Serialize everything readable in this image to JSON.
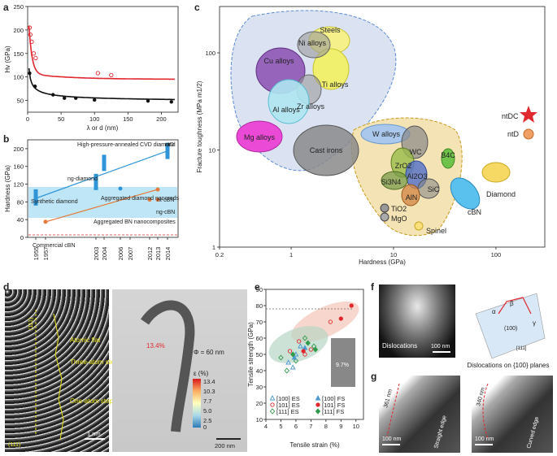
{
  "panel_labels": [
    "a",
    "b",
    "c",
    "d",
    "e",
    "f",
    "g"
  ],
  "chart_data": [
    {
      "id": "a",
      "type": "line",
      "xlabel": "λ or d (nm)",
      "ylabel": "Hv (GPa)",
      "xlim": [
        0,
        225
      ],
      "ylim": [
        25,
        250
      ],
      "xticks": [
        "0",
        "50",
        "100",
        "150",
        "200"
      ],
      "yticks": [
        "50",
        "100",
        "150",
        "200",
        "250"
      ],
      "series": [
        {
          "name": "nanotwinned (red)",
          "color": "#e0282e",
          "points": [
            [
              3,
              205
            ],
            [
              4,
              190
            ],
            [
              6,
              175
            ],
            [
              9,
              150
            ],
            [
              12,
              140
            ],
            [
              105,
              108
            ],
            [
              125,
              104
            ]
          ]
        },
        {
          "name": "nanograined (black)",
          "color": "#111111",
          "points": [
            [
              3,
              108
            ],
            [
              11,
              80
            ],
            [
              38,
              62
            ],
            [
              55,
              55
            ],
            [
              72,
              55
            ],
            [
              100,
              51
            ],
            [
              180,
              49
            ],
            [
              215,
              47
            ]
          ]
        }
      ]
    },
    {
      "id": "b",
      "type": "scatter",
      "xlabel": "",
      "ylabel": "Hardness (GPa)",
      "ylim": [
        0,
        220
      ],
      "yticks": [
        "0",
        "40",
        "80",
        "120",
        "160",
        "200"
      ],
      "xticks": [
        "1955",
        "1957",
        "2003",
        "2004",
        "2006",
        "2007",
        "2012",
        "2013",
        "2014"
      ],
      "labels": {
        "synthetic": "Synthetic diamond",
        "hp_annealed": "High-pressure-annealed CVD diamond",
        "ntd": "ntD",
        "ngd": "ng-diamond",
        "agg_diamond": "Aggregated diamond nanorods",
        "ntcbn": "nt-cBN",
        "ngcbn": "ng-cBN",
        "agg_bn": "Aggregated BN nanocomposites",
        "commercial": "Commercial cBN"
      },
      "points": [
        {
          "name": "Synthetic diamond",
          "year": 1955,
          "value": 90
        },
        {
          "name": "ng-diamond",
          "year": 2003,
          "value": 125
        },
        {
          "name": "High-pressure-annealed CVD diamond",
          "year": 2004,
          "value": 168
        },
        {
          "name": "Aggregated diamond nanorods",
          "year": 2006,
          "value": 110
        },
        {
          "name": "ntD",
          "year": 2014,
          "value": 195
        },
        {
          "name": "Commercial cBN",
          "year": 1957,
          "value": 35
        },
        {
          "name": "Aggregated BN nanocomposites",
          "year": 2012,
          "value": 85
        },
        {
          "name": "ng-cBN",
          "year": 2013,
          "value": 85
        },
        {
          "name": "nt-cBN",
          "year": 2013,
          "value": 108
        }
      ],
      "reference_line": 40
    },
    {
      "id": "c",
      "type": "scatter",
      "xlabel": "Hardness (GPa)",
      "ylabel": "Fracture toughness (MPa m1/2)",
      "xlim": [
        0.2,
        300
      ],
      "ylim": [
        1,
        300
      ],
      "xticks": [
        "0.2",
        "1",
        "10",
        "100"
      ],
      "yticks": [
        "1",
        "10",
        "100"
      ],
      "materials": [
        "Steels",
        "Ni alloys",
        "Cu alloys",
        "Ti alloys",
        "Zr alloys",
        "Al alloys",
        "Mg alloys",
        "Cast irons",
        "W alloys",
        "WC",
        "B4C",
        "ZrO2",
        "Al2O3",
        "Si3N4",
        "SiC",
        "AlN",
        "TiO2",
        "MgO",
        "Spinel",
        "Diamond",
        "cBN"
      ],
      "legend": [
        {
          "label": "ntDC",
          "hardness": 200,
          "toughness": 15
        },
        {
          "label": "ntD",
          "hardness": 200,
          "toughness": 10
        }
      ]
    },
    {
      "id": "e",
      "type": "scatter",
      "xlabel": "Tensile strain (%)",
      "ylabel": "Tensile strength (GPa)",
      "xlim": [
        4,
        10.5
      ],
      "ylim": [
        10,
        90
      ],
      "xticks": [
        "4",
        "5",
        "6",
        "7",
        "8",
        "9",
        "10"
      ],
      "yticks": [
        "10",
        "20",
        "30",
        "40",
        "50",
        "60",
        "70",
        "80",
        "90"
      ],
      "legend": [
        "[100] ES",
        "[101] ES",
        "[111] ES",
        "[100] FS",
        "[101] FS",
        "[111] FS"
      ],
      "inset_label": "9.7%",
      "series": [
        {
          "name": "[100] ES",
          "color": "#4a9ad0",
          "points": [
            [
              5.5,
              45
            ],
            [
              6.0,
              50
            ],
            [
              6.3,
              55
            ],
            [
              5.8,
              42
            ]
          ]
        },
        {
          "name": "[101] ES",
          "color": "#e0282e",
          "points": [
            [
              5.6,
              52
            ],
            [
              6.2,
              58
            ],
            [
              6.6,
              50
            ],
            [
              7.0,
              53
            ],
            [
              8.3,
              70
            ]
          ]
        },
        {
          "name": "[111] ES",
          "color": "#2f9a4a",
          "points": [
            [
              5.0,
              48
            ],
            [
              5.4,
              40
            ],
            [
              6.0,
              46
            ],
            [
              6.6,
              60
            ],
            [
              7.2,
              55
            ]
          ]
        },
        {
          "name": "[100] FS",
          "color": "#4a9ad0",
          "points": [
            [
              5.9,
              48
            ],
            [
              6.6,
              54
            ]
          ]
        },
        {
          "name": "[101] FS",
          "color": "#e0282e",
          "points": [
            [
              6.5,
              52
            ],
            [
              9.0,
              72
            ],
            [
              9.7,
              80
            ]
          ]
        },
        {
          "name": "[111] FS",
          "color": "#2f9a4a",
          "points": [
            [
              5.8,
              50
            ],
            [
              6.8,
              57
            ],
            [
              7.3,
              53
            ]
          ]
        }
      ]
    }
  ],
  "panel_d": {
    "atomic_flat": "Atomic flat",
    "three_atom": "Three-atom steps",
    "one_atom": "One-atom steps",
    "miller1": "(111)",
    "miller2": "(111)",
    "scale1": "1 nm",
    "diameter": "Φ = 60 nm",
    "strain_pct": "13.4%",
    "cbar_title": "ε (%)",
    "cbar_ticks": [
      "13.4",
      "10.3",
      "7.7",
      "5.0",
      "2.5",
      "0"
    ],
    "scale2": "200 nm"
  },
  "panel_f": {
    "dislocations": "Dislocations",
    "scale": "100 nm",
    "planes_caption": "Dislocations on {100} planes",
    "alpha": "α",
    "beta": "β",
    "gamma": "γ",
    "plane": "(100)",
    "direction": "[111]"
  },
  "panel_g": {
    "left_scale": "100 nm",
    "left_len": "361 nm",
    "left_edge": "Straight edge",
    "right_scale": "100 nm",
    "right_len": "340 nm",
    "right_edge": "Curved edge"
  }
}
